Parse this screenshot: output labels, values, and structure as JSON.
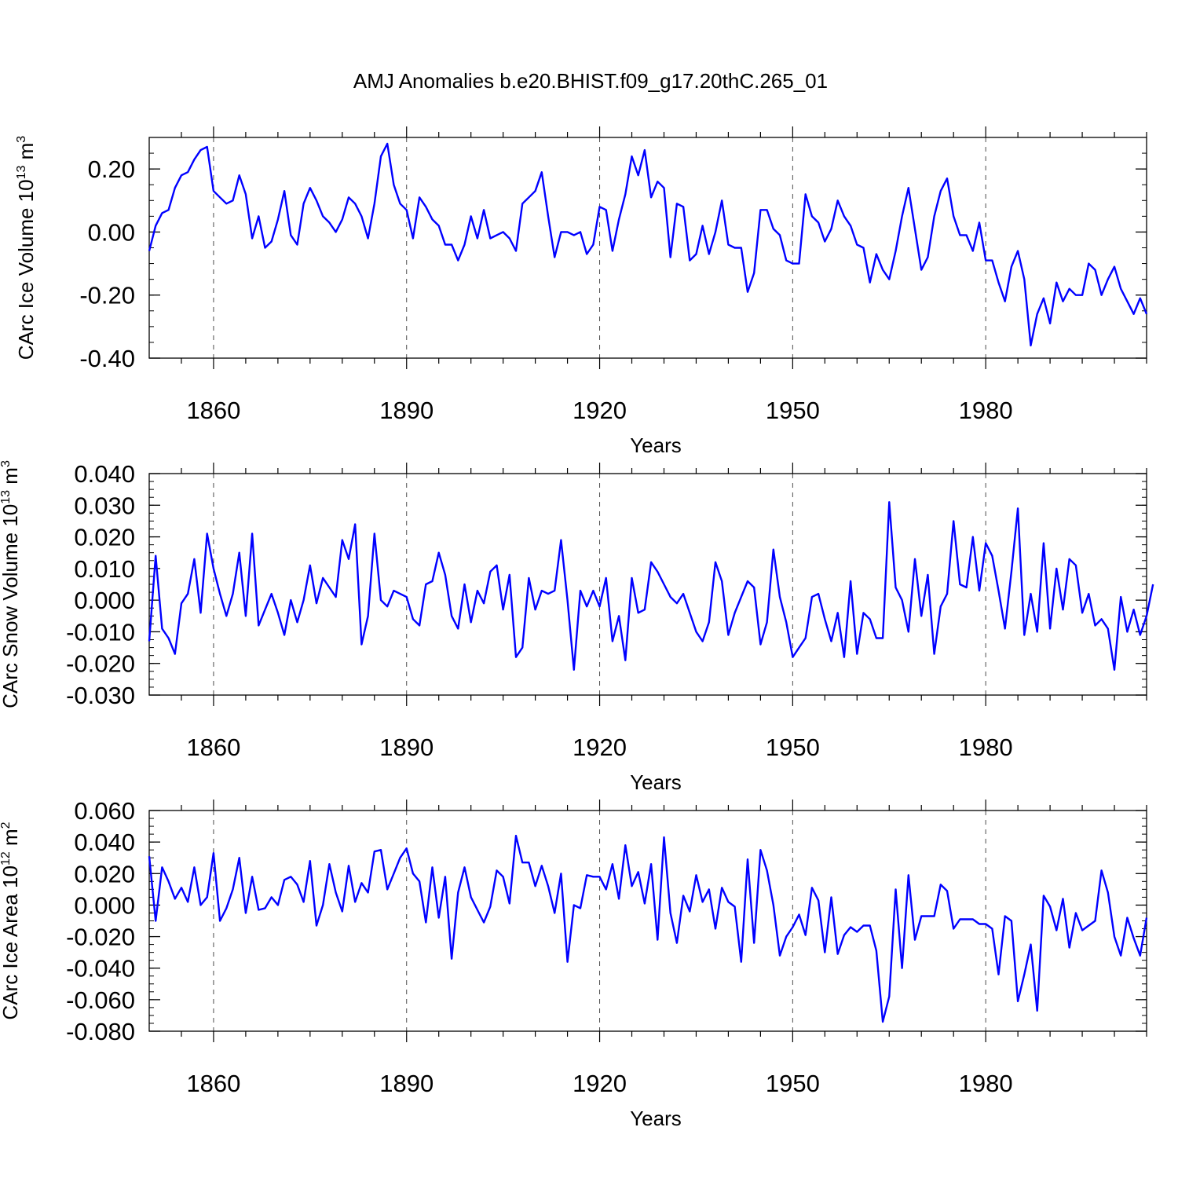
{
  "title": "AMJ Anomalies b.e20.BHIST.f09_g17.20thC.265_01",
  "colors": {
    "line": "#0000ff",
    "axis": "#000000",
    "grid": "#000000",
    "background": "#ffffff"
  },
  "chart_data": [
    {
      "type": "line",
      "ylabel": "CArc Ice Volume 10",
      "ylabel_exp": "13",
      "ylabel_unit": " m",
      "ylabel_unit_exp": "3",
      "xlabel": "Years",
      "xlim": [
        1850,
        2005
      ],
      "ylim": [
        -0.4,
        0.3
      ],
      "yticks": [
        -0.4,
        -0.2,
        0.0,
        0.2
      ],
      "ytick_labels": [
        "-0.40",
        "-0.20",
        "0.00",
        "0.20"
      ],
      "xticks": [
        1860,
        1890,
        1920,
        1950,
        1980
      ],
      "xtick_labels": [
        "1860",
        "1890",
        "1920",
        "1950",
        "1980"
      ],
      "x_start": 1850,
      "values": [
        -0.06,
        0.02,
        0.06,
        0.07,
        0.14,
        0.18,
        0.19,
        0.23,
        0.26,
        0.27,
        0.13,
        0.11,
        0.09,
        0.1,
        0.18,
        0.12,
        -0.02,
        0.05,
        -0.05,
        -0.03,
        0.04,
        0.13,
        -0.01,
        -0.04,
        0.09,
        0.14,
        0.1,
        0.05,
        0.03,
        0.0,
        0.04,
        0.11,
        0.09,
        0.05,
        -0.02,
        0.09,
        0.24,
        0.28,
        0.15,
        0.09,
        0.07,
        -0.02,
        0.11,
        0.08,
        0.04,
        0.02,
        -0.04,
        -0.04,
        -0.09,
        -0.04,
        0.05,
        -0.02,
        0.07,
        -0.02,
        -0.01,
        0.0,
        -0.02,
        -0.06,
        0.09,
        0.11,
        0.13,
        0.19,
        0.05,
        -0.08,
        0.0,
        0.0,
        -0.01,
        0.0,
        -0.07,
        -0.04,
        0.08,
        0.07,
        -0.06,
        0.04,
        0.12,
        0.24,
        0.18,
        0.26,
        0.11,
        0.16,
        0.14,
        -0.08,
        0.09,
        0.08,
        -0.09,
        -0.07,
        0.02,
        -0.07,
        0.0,
        0.1,
        -0.04,
        -0.05,
        -0.05,
        -0.19,
        -0.13,
        0.07,
        0.07,
        0.01,
        -0.01,
        -0.09,
        -0.1,
        -0.1,
        0.12,
        0.05,
        0.03,
        -0.03,
        0.01,
        0.1,
        0.05,
        0.02,
        -0.04,
        -0.05,
        -0.16,
        -0.07,
        -0.12,
        -0.15,
        -0.06,
        0.05,
        0.14,
        0.01,
        -0.12,
        -0.08,
        0.05,
        0.13,
        0.17,
        0.05,
        -0.01,
        -0.01,
        -0.06,
        0.03,
        -0.09,
        -0.09,
        -0.16,
        -0.22,
        -0.11,
        -0.06,
        -0.15,
        -0.36,
        -0.26,
        -0.21,
        -0.29,
        -0.16,
        -0.22,
        -0.18,
        -0.2,
        -0.2,
        -0.1,
        -0.12,
        -0.2,
        -0.15,
        -0.11,
        -0.18,
        -0.22,
        -0.26,
        -0.21,
        -0.26
      ]
    },
    {
      "type": "line",
      "ylabel": "CArc Snow Volume 10",
      "ylabel_exp": "13",
      "ylabel_unit": " m",
      "ylabel_unit_exp": "3",
      "xlabel": "Years",
      "xlim": [
        1850,
        2005
      ],
      "ylim": [
        -0.03,
        0.04
      ],
      "yticks": [
        -0.03,
        -0.02,
        -0.01,
        0.0,
        0.01,
        0.02,
        0.03,
        0.04
      ],
      "ytick_labels": [
        "-0.030",
        "-0.020",
        "-0.010",
        "0.000",
        "0.010",
        "0.020",
        "0.030",
        "0.040"
      ],
      "xticks": [
        1860,
        1890,
        1920,
        1950,
        1980
      ],
      "xtick_labels": [
        "1860",
        "1890",
        "1920",
        "1950",
        "1980"
      ],
      "x_start": 1850,
      "values": [
        -0.013,
        0.014,
        -0.009,
        -0.012,
        -0.017,
        -0.001,
        0.002,
        0.013,
        -0.004,
        0.021,
        0.01,
        0.002,
        -0.005,
        0.002,
        0.015,
        -0.005,
        0.021,
        -0.008,
        -0.003,
        0.002,
        -0.004,
        -0.011,
        0.0,
        -0.007,
        0.0,
        0.011,
        -0.001,
        0.007,
        0.004,
        0.001,
        0.019,
        0.013,
        0.024,
        -0.014,
        -0.005,
        0.021,
        0.0,
        -0.002,
        0.003,
        0.002,
        0.001,
        -0.006,
        -0.008,
        0.005,
        0.006,
        0.015,
        0.008,
        -0.005,
        -0.009,
        0.005,
        -0.007,
        0.003,
        -0.001,
        0.009,
        0.011,
        -0.003,
        0.008,
        -0.018,
        -0.015,
        0.007,
        -0.003,
        0.003,
        0.002,
        0.003,
        0.019,
        0.0,
        -0.022,
        0.003,
        -0.002,
        0.003,
        -0.002,
        0.007,
        -0.013,
        -0.005,
        -0.019,
        0.007,
        -0.004,
        -0.003,
        0.012,
        0.009,
        0.005,
        0.001,
        -0.001,
        0.002,
        -0.004,
        -0.01,
        -0.013,
        -0.007,
        0.012,
        0.006,
        -0.011,
        -0.004,
        0.001,
        0.006,
        0.004,
        -0.014,
        -0.007,
        0.016,
        0.001,
        -0.007,
        -0.018,
        -0.015,
        -0.012,
        0.001,
        0.002,
        -0.006,
        -0.013,
        -0.004,
        -0.018,
        0.006,
        -0.017,
        -0.004,
        -0.006,
        -0.012,
        -0.012,
        0.031,
        0.004,
        0.0,
        -0.01,
        0.013,
        -0.005,
        0.008,
        -0.017,
        -0.002,
        0.002,
        0.025,
        0.005,
        0.004,
        0.02,
        0.003,
        0.018,
        0.014,
        0.003,
        -0.009,
        0.009,
        0.029,
        -0.011,
        0.002,
        -0.01,
        0.018,
        -0.009,
        0.01,
        -0.003,
        0.013,
        0.011,
        -0.004,
        0.002,
        -0.008,
        -0.006,
        -0.009,
        -0.022,
        0.001,
        -0.01,
        -0.003,
        -0.011,
        -0.005,
        0.005
      ]
    },
    {
      "type": "line",
      "ylabel": "CArc Ice Area 10",
      "ylabel_exp": "12",
      "ylabel_unit": " m",
      "ylabel_unit_exp": "2",
      "xlabel": "Years",
      "xlim": [
        1850,
        2005
      ],
      "ylim": [
        -0.08,
        0.06
      ],
      "yticks": [
        -0.08,
        -0.06,
        -0.04,
        -0.02,
        0.0,
        0.02,
        0.04,
        0.06
      ],
      "ytick_labels": [
        "-0.080",
        "-0.060",
        "-0.040",
        "-0.020",
        "0.000",
        "0.020",
        "0.040",
        "0.060"
      ],
      "xticks": [
        1860,
        1890,
        1920,
        1950,
        1980
      ],
      "xtick_labels": [
        "1860",
        "1890",
        "1920",
        "1950",
        "1980"
      ],
      "x_start": 1850,
      "values": [
        0.031,
        -0.01,
        0.024,
        0.015,
        0.004,
        0.011,
        0.002,
        0.024,
        0.0,
        0.005,
        0.033,
        -0.01,
        -0.002,
        0.01,
        0.03,
        -0.005,
        0.018,
        -0.003,
        -0.002,
        0.005,
        0.0,
        0.016,
        0.018,
        0.013,
        0.002,
        0.028,
        -0.013,
        0.0,
        0.026,
        0.008,
        -0.004,
        0.025,
        0.002,
        0.014,
        0.008,
        0.034,
        0.035,
        0.01,
        0.02,
        0.03,
        0.036,
        0.02,
        0.015,
        -0.011,
        0.024,
        -0.008,
        0.018,
        -0.034,
        0.008,
        0.024,
        0.005,
        -0.003,
        -0.011,
        -0.001,
        0.022,
        0.018,
        0.001,
        0.044,
        0.027,
        0.027,
        0.012,
        0.025,
        0.012,
        -0.005,
        0.02,
        -0.036,
        0.0,
        -0.002,
        0.019,
        0.018,
        0.018,
        0.01,
        0.026,
        0.004,
        0.038,
        0.012,
        0.021,
        0.001,
        0.026,
        -0.022,
        0.043,
        -0.005,
        -0.024,
        0.006,
        -0.004,
        0.019,
        0.002,
        0.01,
        -0.015,
        0.011,
        0.002,
        -0.001,
        -0.036,
        0.029,
        -0.024,
        0.035,
        0.022,
        0.0,
        -0.032,
        -0.02,
        -0.014,
        -0.006,
        -0.019,
        0.011,
        0.003,
        -0.03,
        0.005,
        -0.031,
        -0.019,
        -0.014,
        -0.017,
        -0.013,
        -0.013,
        -0.029,
        -0.074,
        -0.058,
        0.01,
        -0.04,
        0.019,
        -0.022,
        -0.007,
        -0.007,
        -0.007,
        0.013,
        0.009,
        -0.015,
        -0.009,
        -0.009,
        -0.009,
        -0.012,
        -0.012,
        -0.015,
        -0.044,
        -0.007,
        -0.01,
        -0.061,
        -0.044,
        -0.025,
        -0.067,
        0.006,
        -0.001,
        -0.016,
        0.004,
        -0.027,
        -0.005,
        -0.016,
        -0.013,
        -0.01,
        0.022,
        0.008,
        -0.02,
        -0.032,
        -0.008,
        -0.021,
        -0.032,
        -0.008
      ]
    }
  ]
}
